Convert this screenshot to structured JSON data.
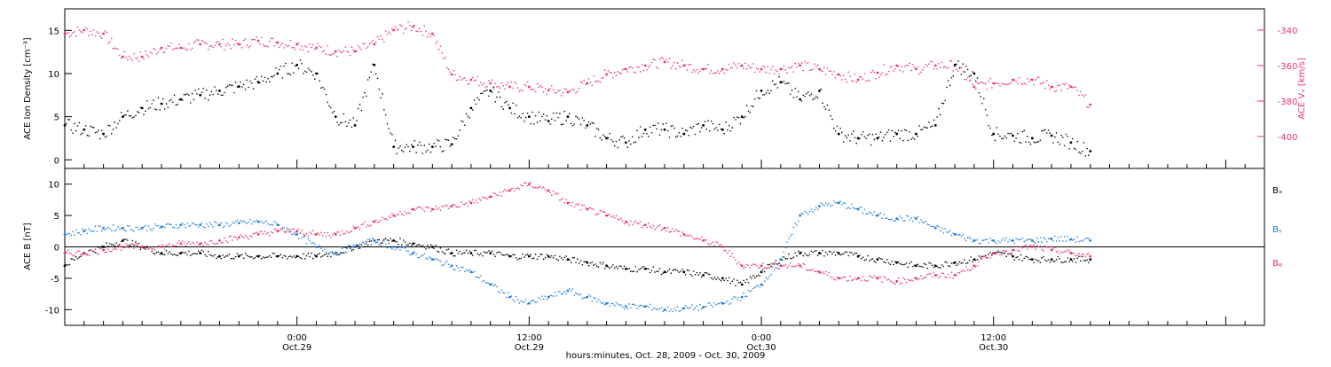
{
  "figure": {
    "xlabel": "hours:minutes, Oct. 28, 2009 - Oct. 30, 2009",
    "x_ticks": [
      {
        "hour": 12,
        "time": "0:00",
        "date": "Oct.29"
      },
      {
        "hour": 24,
        "time": "12:00",
        "date": "Oct.29"
      },
      {
        "hour": 36,
        "time": "0:00",
        "date": "Oct.30"
      },
      {
        "hour": 48,
        "time": "12:00",
        "date": "Oct.30"
      }
    ]
  },
  "colors": {
    "black": "#000000",
    "red": "#e8346a",
    "blue": "#1e7fd8"
  },
  "chart_data": [
    {
      "type": "scatter",
      "panel": "top",
      "title": "",
      "ylabel": "ACE\nIon Density\n[cm⁻³]",
      "ylabel_right": "ACE\nVₓ [km/s]",
      "xlim": [
        0,
        62
      ],
      "ylim": [
        -1,
        17.5
      ],
      "ylim_right": [
        -418,
        -328
      ],
      "yticks": [
        0,
        5,
        10,
        15
      ],
      "yticks_right": [
        -400,
        -380,
        -360,
        -340
      ],
      "series": [
        {
          "name": "",
          "axis": "left",
          "color": "#000000",
          "x": [
            0,
            1,
            2,
            3,
            4,
            5,
            6,
            7,
            8,
            9,
            10,
            11,
            12,
            13,
            14,
            15,
            16,
            17,
            18,
            19,
            20,
            21,
            22,
            23,
            24,
            25,
            26,
            27,
            28,
            29,
            30,
            31,
            32,
            33,
            34,
            35,
            36,
            37,
            38,
            39,
            40,
            41,
            42,
            43,
            44,
            45,
            46,
            47,
            48,
            49,
            50,
            51,
            52,
            53
          ],
          "y": [
            4,
            3.5,
            3,
            5,
            6,
            6.5,
            7,
            7.5,
            8,
            8.5,
            9,
            10,
            11,
            10,
            5,
            4,
            11,
            1.5,
            1.5,
            1.5,
            1.8,
            6,
            8,
            6,
            5,
            4.5,
            5,
            4,
            2.5,
            2,
            3.5,
            3.5,
            3,
            4,
            3.5,
            5,
            8,
            9,
            7,
            8,
            3,
            2.5,
            2.5,
            3,
            3,
            4,
            11,
            10,
            3,
            2.8,
            2.5,
            2.8,
            2,
            1
          ]
        },
        {
          "name": "",
          "axis": "right",
          "color": "#e8346a",
          "x": [
            0,
            1,
            2,
            3,
            4,
            5,
            6,
            7,
            8,
            9,
            10,
            11,
            12,
            13,
            14,
            15,
            16,
            17,
            18,
            19,
            20,
            21,
            22,
            23,
            24,
            25,
            26,
            27,
            28,
            29,
            30,
            31,
            32,
            33,
            34,
            35,
            36,
            37,
            38,
            39,
            40,
            41,
            42,
            43,
            44,
            45,
            46,
            47,
            48,
            49,
            50,
            51,
            52,
            53
          ],
          "y": [
            -342,
            -340,
            -342,
            -355,
            -355,
            -350,
            -350,
            -348,
            -348,
            -348,
            -346,
            -347,
            -348,
            -350,
            -352,
            -352,
            -348,
            -340,
            -338,
            -342,
            -365,
            -368,
            -370,
            -372,
            -372,
            -374,
            -375,
            -370,
            -365,
            -362,
            -360,
            -358,
            -360,
            -362,
            -362,
            -360,
            -362,
            -362,
            -360,
            -362,
            -365,
            -368,
            -364,
            -360,
            -362,
            -360,
            -360,
            -372,
            -370,
            -368,
            -368,
            -372,
            -372,
            -382
          ]
        }
      ]
    },
    {
      "type": "scatter",
      "panel": "bottom",
      "title": "",
      "ylabel": "ACE\nB\n[nT]",
      "xlim": [
        0,
        62
      ],
      "ylim": [
        -12.5,
        12.5
      ],
      "yticks": [
        -10,
        -5,
        0,
        5,
        10
      ],
      "zero_line": true,
      "series": [
        {
          "name": "Bₓ",
          "color": "#000000",
          "x": [
            0,
            1,
            2,
            3,
            4,
            5,
            6,
            7,
            8,
            9,
            10,
            11,
            12,
            13,
            14,
            15,
            16,
            17,
            18,
            19,
            20,
            21,
            22,
            23,
            24,
            25,
            26,
            27,
            28,
            29,
            30,
            31,
            32,
            33,
            34,
            35,
            36,
            37,
            38,
            39,
            40,
            41,
            42,
            43,
            44,
            45,
            46,
            47,
            48,
            49,
            50,
            51,
            52,
            53
          ],
          "y": [
            -3,
            -1,
            0,
            1,
            0,
            -1,
            -1,
            -1,
            -1.5,
            -1.5,
            -1.5,
            -1.5,
            -1.5,
            -1.5,
            -1,
            0,
            1,
            1,
            0.5,
            0,
            -1,
            -1,
            -1,
            -1.5,
            -1.5,
            -1.5,
            -2,
            -2.5,
            -3,
            -3.5,
            -3.5,
            -4,
            -4,
            -4.5,
            -5,
            -6,
            -4,
            -2,
            -1,
            -1,
            -1,
            -1.5,
            -2,
            -2.5,
            -3,
            -3,
            -2.5,
            -2,
            -1,
            -1.5,
            -2,
            -2,
            -2,
            -2
          ]
        },
        {
          "name": "Bᵧ",
          "color": "#1e7fd8",
          "x": [
            0,
            1,
            2,
            3,
            4,
            5,
            6,
            7,
            8,
            9,
            10,
            11,
            12,
            13,
            14,
            15,
            16,
            17,
            18,
            19,
            20,
            21,
            22,
            23,
            24,
            25,
            26,
            27,
            28,
            29,
            30,
            31,
            32,
            33,
            34,
            35,
            36,
            37,
            38,
            39,
            40,
            41,
            42,
            43,
            44,
            45,
            46,
            47,
            48,
            49,
            50,
            51,
            52,
            53
          ],
          "y": [
            2,
            2.5,
            3,
            3,
            3,
            3.2,
            3.5,
            3.5,
            3.5,
            3.8,
            4,
            3.5,
            2,
            0,
            -1,
            0,
            1,
            0,
            -1,
            -2,
            -3,
            -4,
            -6,
            -8,
            -9,
            -8,
            -7,
            -8,
            -9,
            -9.5,
            -9.5,
            -10,
            -9.8,
            -9.6,
            -9,
            -8,
            -6,
            -2,
            5,
            6.5,
            7,
            6,
            5,
            4.5,
            4.5,
            3,
            2,
            1,
            1,
            1,
            1,
            1.3,
            1.2,
            1
          ]
        },
        {
          "name": "Bᵩ",
          "color": "#e8346a",
          "x": [
            0,
            1,
            2,
            3,
            4,
            5,
            6,
            7,
            8,
            9,
            10,
            11,
            12,
            13,
            14,
            15,
            16,
            17,
            18,
            19,
            20,
            21,
            22,
            23,
            24,
            25,
            26,
            27,
            28,
            29,
            30,
            31,
            32,
            33,
            34,
            35,
            36,
            37,
            38,
            39,
            40,
            41,
            42,
            43,
            44,
            45,
            46,
            47,
            48,
            49,
            50,
            51,
            52,
            53
          ],
          "y": [
            -1,
            -1,
            -0.5,
            0,
            0,
            0,
            0.5,
            0.5,
            1,
            1.5,
            2,
            2.5,
            2.5,
            2,
            2,
            3,
            4,
            5,
            6,
            6,
            6.5,
            7,
            8,
            9,
            10,
            9,
            7,
            6,
            5,
            4,
            3.5,
            3,
            2,
            1,
            0,
            -3,
            -3,
            -3,
            -3,
            -4,
            -5,
            -5,
            -5,
            -5.5,
            -5,
            -4.5,
            -4.5,
            -3,
            -1,
            -0.5,
            0,
            -0.5,
            -1,
            -1.5
          ]
        }
      ]
    }
  ]
}
